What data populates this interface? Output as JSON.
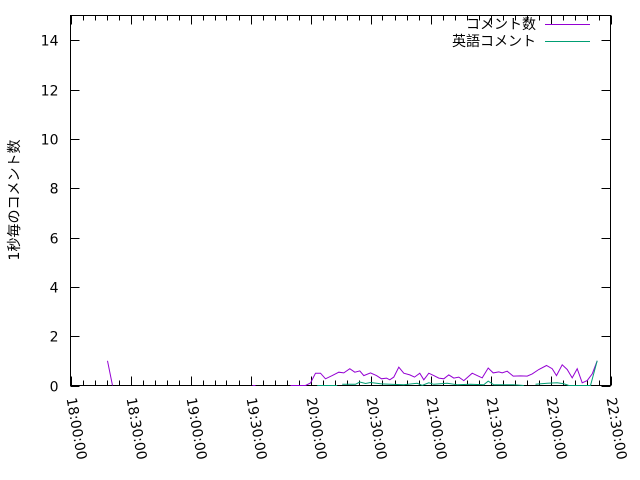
{
  "chart_data": {
    "type": "line",
    "title": "",
    "xlabel": "",
    "ylabel": "1秒毎のコメント数",
    "xlim": [
      "18:00:00",
      "22:30:00"
    ],
    "ylim": [
      0,
      15
    ],
    "x_ticks": [
      "18:00:00",
      "18:30:00",
      "19:00:00",
      "19:30:00",
      "20:00:00",
      "20:30:00",
      "21:00:00",
      "21:30:00",
      "22:00:00",
      "22:30:00"
    ],
    "y_ticks": [
      0,
      2,
      4,
      6,
      8,
      10,
      12,
      14
    ],
    "grid": false,
    "legend_position": "top-right",
    "series": [
      {
        "name": "コメント数",
        "color": "#9400d3",
        "points": [
          [
            "18:18:30",
            1.0
          ],
          [
            "18:21:00",
            0
          ],
          null,
          [
            "19:31:00",
            0
          ],
          [
            "19:32:30",
            0
          ],
          null,
          [
            "19:50:00",
            0
          ],
          [
            "19:57:30",
            0
          ],
          [
            "20:00:00",
            0.1
          ],
          [
            "20:02:30",
            0.5
          ],
          [
            "20:05:00",
            0.5
          ],
          [
            "20:07:30",
            0.27
          ],
          [
            "20:10:50",
            0.4
          ],
          [
            "20:14:10",
            0.54
          ],
          [
            "20:16:40",
            0.51
          ],
          [
            "20:19:40",
            0.68
          ],
          [
            "20:22:10",
            0.54
          ],
          [
            "20:24:40",
            0.59
          ],
          [
            "20:26:40",
            0.4
          ],
          [
            "20:30:00",
            0.51
          ],
          [
            "20:33:00",
            0.4
          ],
          [
            "20:35:30",
            0.27
          ],
          [
            "20:38:00",
            0.3
          ],
          [
            "20:39:40",
            0.23
          ],
          [
            "20:41:40",
            0.34
          ],
          [
            "20:44:10",
            0.74
          ],
          [
            "20:46:40",
            0.5
          ],
          [
            "20:49:40",
            0.43
          ],
          [
            "20:52:00",
            0.34
          ],
          [
            "20:54:40",
            0.5
          ],
          [
            "20:56:40",
            0.23
          ],
          [
            "20:59:10",
            0.5
          ],
          [
            "21:01:40",
            0.4
          ],
          [
            "21:04:10",
            0.3
          ],
          [
            "21:06:40",
            0.27
          ],
          [
            "21:09:10",
            0.43
          ],
          [
            "21:11:40",
            0.3
          ],
          [
            "21:14:10",
            0.34
          ],
          [
            "21:16:40",
            0.2
          ],
          [
            "21:20:50",
            0.5
          ],
          [
            "21:23:20",
            0.4
          ],
          [
            "21:25:50",
            0.31
          ],
          [
            "21:28:50",
            0.71
          ],
          [
            "21:31:20",
            0.51
          ],
          [
            "21:34:10",
            0.55
          ],
          [
            "21:35:50",
            0.51
          ],
          [
            "21:38:20",
            0.58
          ],
          [
            "21:41:20",
            0.38
          ],
          [
            "21:45:00",
            0.39
          ],
          [
            "21:48:20",
            0.38
          ],
          [
            "21:50:50",
            0.47
          ],
          [
            "21:54:10",
            0.65
          ],
          [
            "21:58:00",
            0.81
          ],
          [
            "22:00:50",
            0.68
          ],
          [
            "22:03:00",
            0.4
          ],
          [
            "22:05:50",
            0.84
          ],
          [
            "22:08:20",
            0.65
          ],
          [
            "22:10:50",
            0.31
          ],
          [
            "22:13:20",
            0.68
          ],
          [
            "22:15:50",
            0.11
          ],
          [
            "22:18:20",
            0.2
          ],
          [
            "22:20:50",
            0.47
          ],
          [
            "22:23:20",
            1.0
          ]
        ]
      },
      {
        "name": "英語コメント",
        "color": "#009e73",
        "points": [
          [
            "20:03:20",
            0
          ],
          [
            "20:13:20",
            0
          ],
          null,
          [
            "20:15:50",
            0.05
          ],
          [
            "20:22:30",
            0.05
          ],
          [
            "20:24:40",
            0.14
          ],
          [
            "20:27:30",
            0.08
          ],
          [
            "20:30:00",
            0.12
          ],
          [
            "20:35:00",
            0.07
          ],
          [
            "20:40:00",
            0.05
          ],
          [
            "20:46:40",
            0.03
          ],
          [
            "20:53:20",
            0.09
          ],
          [
            "20:55:50",
            0.01
          ],
          [
            "20:59:10",
            0.11
          ],
          [
            "21:01:40",
            0.05
          ],
          [
            "21:08:20",
            0.09
          ],
          [
            "21:13:20",
            0.03
          ],
          [
            "21:20:00",
            0.05
          ],
          [
            "21:26:40",
            0.03
          ],
          [
            "21:28:50",
            0.18
          ],
          [
            "21:31:40",
            0.03
          ],
          [
            "21:41:40",
            0.03
          ],
          [
            "21:46:40",
            0
          ],
          null,
          [
            "21:52:30",
            0.05
          ],
          [
            "21:58:20",
            0.09
          ],
          [
            "22:03:20",
            0.11
          ],
          [
            "22:06:40",
            0.07
          ],
          [
            "22:09:10",
            0
          ],
          [
            "22:20:00",
            0
          ],
          [
            "22:23:20",
            1.0
          ]
        ]
      }
    ]
  }
}
